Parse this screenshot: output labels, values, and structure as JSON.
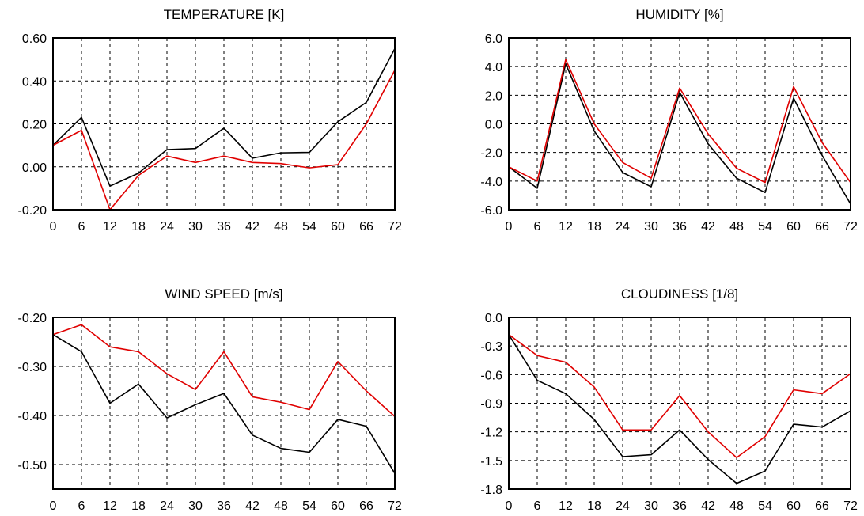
{
  "chart_data": [
    {
      "type": "line",
      "title": "TEMPERATURE [K]",
      "x": [
        0,
        6,
        12,
        18,
        24,
        30,
        36,
        42,
        48,
        54,
        60,
        66,
        72
      ],
      "ylim": [
        -0.2,
        0.6
      ],
      "yticks": [
        "0.60",
        "0.40",
        "0.20",
        "0.00",
        "-0.20"
      ],
      "ytick_values": [
        0.6,
        0.4,
        0.2,
        0.0,
        -0.2
      ],
      "grid": true,
      "series": [
        {
          "color": "#000000",
          "values": [
            0.1,
            0.23,
            -0.09,
            -0.03,
            0.08,
            0.085,
            0.18,
            0.04,
            0.065,
            0.067,
            0.21,
            0.3,
            0.55
          ]
        },
        {
          "color": "#e00000",
          "values": [
            0.1,
            0.17,
            -0.2,
            -0.04,
            0.05,
            0.02,
            0.05,
            0.02,
            0.015,
            -0.005,
            0.01,
            0.2,
            0.45
          ]
        }
      ]
    },
    {
      "type": "line",
      "title": "HUMIDITY [%]",
      "x": [
        0,
        6,
        12,
        18,
        24,
        30,
        36,
        42,
        48,
        54,
        60,
        66,
        72
      ],
      "ylim": [
        -6.0,
        6.0
      ],
      "yticks": [
        "6.0",
        "4.0",
        "2.0",
        "0.0",
        "-2.0",
        "-4.0",
        "-6.0"
      ],
      "ytick_values": [
        6,
        4,
        2,
        0,
        -2,
        -4,
        -6
      ],
      "grid": true,
      "series": [
        {
          "color": "#000000",
          "values": [
            -3.0,
            -4.5,
            4.2,
            -0.5,
            -3.4,
            -4.4,
            2.2,
            -1.4,
            -3.8,
            -4.8,
            1.8,
            -2.2,
            -5.6
          ]
        },
        {
          "color": "#e00000",
          "values": [
            -3.0,
            -4.0,
            4.5,
            0.0,
            -2.7,
            -3.8,
            2.5,
            -0.7,
            -3.1,
            -4.1,
            2.6,
            -1.3,
            -4.1
          ]
        }
      ]
    },
    {
      "type": "line",
      "title": "WIND SPEED [m/s]",
      "x": [
        0,
        6,
        12,
        18,
        24,
        30,
        36,
        42,
        48,
        54,
        60,
        66,
        72
      ],
      "ylim": [
        -0.55,
        -0.2
      ],
      "yticks": [
        "-0.20",
        "-0.30",
        "-0.40",
        "-0.50"
      ],
      "ytick_values": [
        -0.2,
        -0.3,
        -0.4,
        -0.5
      ],
      "grid": true,
      "series": [
        {
          "color": "#000000",
          "values": [
            -0.235,
            -0.27,
            -0.375,
            -0.336,
            -0.405,
            -0.378,
            -0.355,
            -0.44,
            -0.467,
            -0.475,
            -0.408,
            -0.422,
            -0.518
          ]
        },
        {
          "color": "#e00000",
          "values": [
            -0.235,
            -0.215,
            -0.26,
            -0.27,
            -0.315,
            -0.347,
            -0.27,
            -0.362,
            -0.373,
            -0.388,
            -0.29,
            -0.35,
            -0.402
          ]
        }
      ]
    },
    {
      "type": "line",
      "title": "CLOUDINESS [1/8]",
      "x": [
        0,
        6,
        12,
        18,
        24,
        30,
        36,
        42,
        48,
        54,
        60,
        66,
        72
      ],
      "ylim": [
        -1.8,
        0.0
      ],
      "yticks": [
        "0.0",
        "-0.3",
        "-0.6",
        "-0.9",
        "-1.2",
        "-1.5",
        "-1.8"
      ],
      "ytick_values": [
        0.0,
        -0.3,
        -0.6,
        -0.9,
        -1.2,
        -1.5,
        -1.8
      ],
      "grid": true,
      "series": [
        {
          "color": "#000000",
          "values": [
            -0.18,
            -0.66,
            -0.8,
            -1.07,
            -1.46,
            -1.44,
            -1.18,
            -1.49,
            -1.74,
            -1.61,
            -1.12,
            -1.15,
            -0.98
          ]
        },
        {
          "color": "#e00000",
          "values": [
            -0.18,
            -0.4,
            -0.47,
            -0.73,
            -1.18,
            -1.18,
            -0.82,
            -1.2,
            -1.47,
            -1.25,
            -0.76,
            -0.8,
            -0.59
          ]
        }
      ]
    }
  ]
}
